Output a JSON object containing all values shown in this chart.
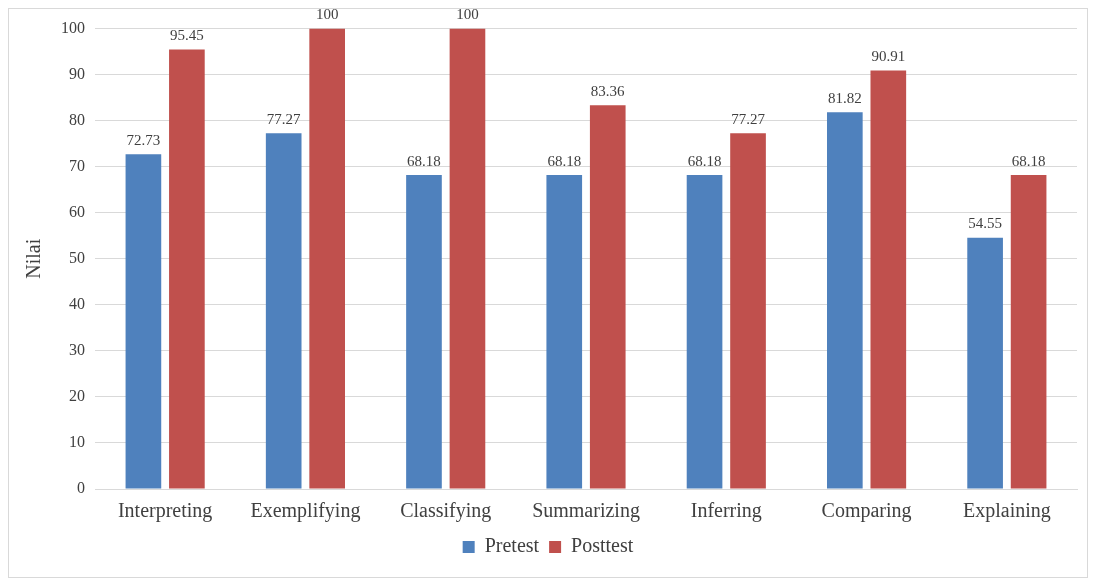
{
  "chart_data": {
    "type": "bar",
    "ylabel": "Nilai",
    "categories": [
      "Interpreting",
      "Exemplifying",
      "Classifying",
      "Summarizing",
      "Inferring",
      "Comparing",
      "Explaining"
    ],
    "series": [
      {
        "name": "Pretest",
        "color": "#4f81bd",
        "values": [
          72.73,
          77.27,
          68.18,
          68.18,
          68.18,
          81.82,
          54.55
        ]
      },
      {
        "name": "Posttest",
        "color": "#c0504d",
        "values": [
          95.45,
          100,
          100,
          83.36,
          77.27,
          90.91,
          68.18
        ]
      }
    ],
    "ylim": [
      0,
      100
    ],
    "yticks": [
      0,
      10,
      20,
      30,
      40,
      50,
      60,
      70,
      80,
      90,
      100
    ],
    "grid": "y",
    "legend": "bottom",
    "data_labels": true
  }
}
